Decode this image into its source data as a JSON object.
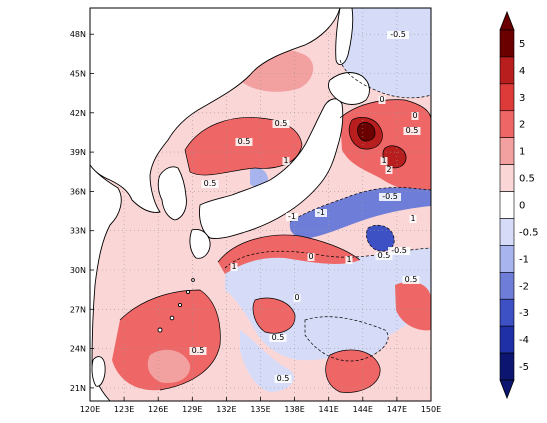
{
  "map": {
    "type": "filled-contour",
    "region": {
      "lon": [
        120,
        150
      ],
      "lat": [
        20,
        50
      ]
    },
    "lon_ticks": [
      "120E",
      "123E",
      "126E",
      "129E",
      "132E",
      "135E",
      "138E",
      "141E",
      "144E",
      "147E",
      "150E"
    ],
    "lat_ticks": [
      "21N",
      "24N",
      "27N",
      "30N",
      "33N",
      "36N",
      "39N",
      "42N",
      "45N",
      "48N"
    ],
    "contour_labels": [
      "-0.5",
      "0.5",
      "1",
      "0",
      "-1",
      "2",
      "0.5",
      "0",
      "1",
      "-0.5",
      "0.5",
      "1",
      "0",
      "0.5",
      "0.5",
      "1",
      "0.5",
      "0.5",
      "0",
      "-0.5",
      "-1",
      "0.5",
      "1",
      "0.5"
    ],
    "colorbar": {
      "labels": [
        "5",
        "4",
        "3",
        "2",
        "1",
        "0.5",
        "0",
        "-0.5",
        "-1",
        "-2",
        "-3",
        "-4",
        "-5"
      ],
      "colors": [
        "#6b0000",
        "#b81e1e",
        "#dd3a3a",
        "#ee6666",
        "#f3a0a0",
        "#fbd6d6",
        "#ffffff",
        "#d6dcf8",
        "#a8b4ee",
        "#6e7ed8",
        "#3d50c4",
        "#1f2fa6",
        "#0c1570"
      ]
    }
  }
}
